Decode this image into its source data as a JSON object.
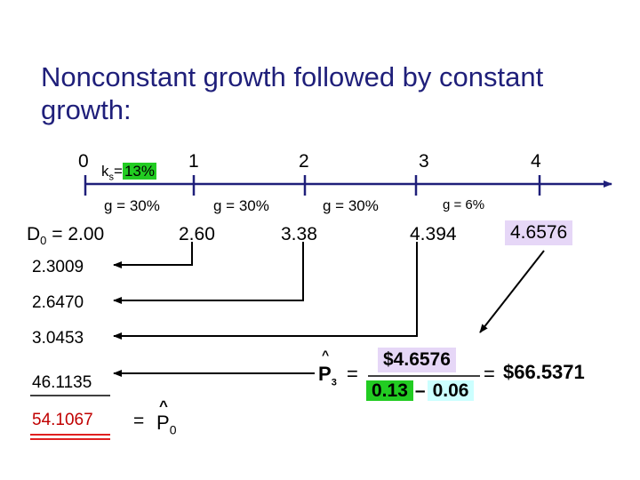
{
  "title": "Nonconstant growth followed by constant growth:",
  "timeline": {
    "periods": [
      "0",
      "1",
      "2",
      "3",
      "4"
    ],
    "rate_label_prefix": "k",
    "rate_label_sub": "s",
    "rate_label_eq": "=",
    "rate_value": "13%",
    "growth_labels": [
      "g = 30%",
      "g = 30%",
      "g = 30%",
      "g = 6%"
    ]
  },
  "cash_flows": {
    "d0_main": "D",
    "d0_sub": "0",
    "d0_value": " = 2.00",
    "values": [
      "2.60",
      "3.38",
      "4.394",
      "4.6576"
    ]
  },
  "present_values": [
    "2.3009",
    "2.6470",
    "3.0453",
    "46.1135"
  ],
  "total": {
    "value": "54.1067",
    "eq_prefix": "=",
    "p_letter": "P",
    "hat": "^",
    "sub": "0"
  },
  "formula": {
    "p_letter": "P",
    "hat": "^",
    "sub": "3",
    "eq1": "=",
    "numerator": "$4.6576",
    "denom_left": "0.13",
    "minus": "–",
    "denom_right": "0.06",
    "eq2": "=",
    "result": "$66.5371"
  },
  "colors": {
    "title": "#1f1f7a",
    "timeline_blue": "#1f1f7a",
    "underline_red": "#e02020",
    "highlight_green": "#22cc22",
    "highlight_lavender": "#e6d7f7",
    "highlight_yellow": "#ffff99",
    "highlight_cyan": "#ccffff"
  }
}
